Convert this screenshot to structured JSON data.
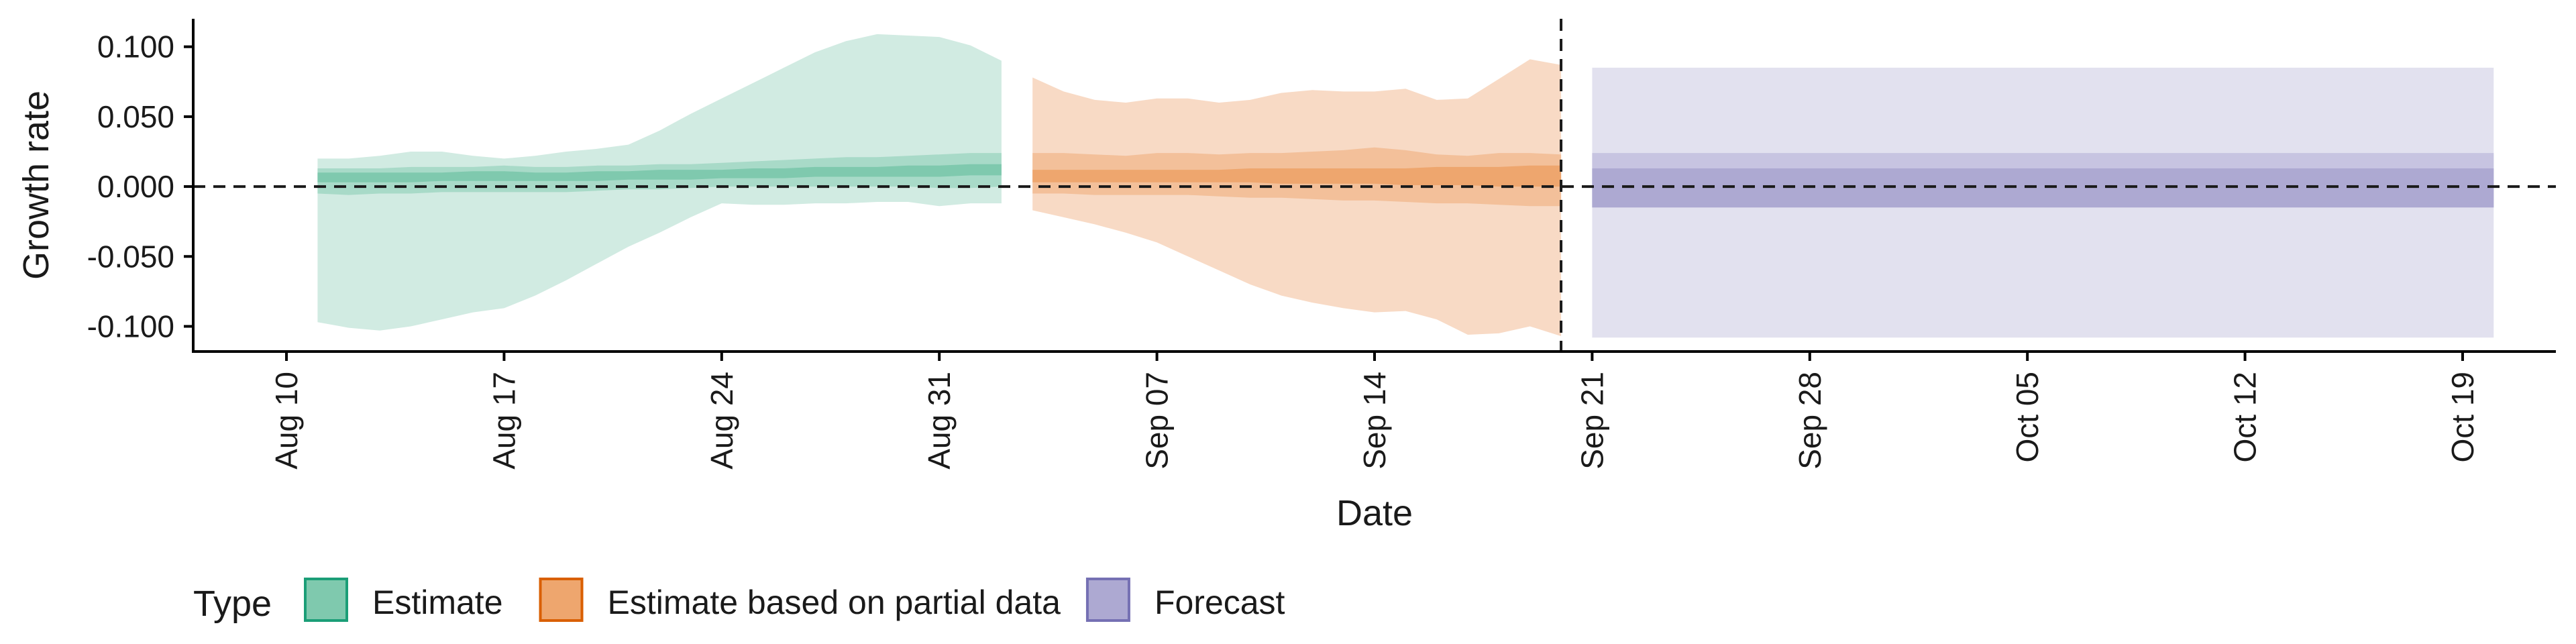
{
  "chart_data": {
    "type": "area",
    "xlabel": "Date",
    "ylabel": "Growth rate",
    "x_ticks": [
      "Aug 10",
      "Aug 17",
      "Aug 24",
      "Aug 31",
      "Sep 07",
      "Sep 14",
      "Sep 21",
      "Sep 28",
      "Oct 05",
      "Oct 12",
      "Oct 19"
    ],
    "y_ticks": [
      "0.100",
      "0.050",
      "0.000",
      "-0.050",
      "-0.100"
    ],
    "ylim": [
      -0.118,
      0.12
    ],
    "xlim": [
      "2020-08-07",
      "2020-10-22"
    ],
    "reference_line_y": 0,
    "vertical_line_date": "2020-09-20",
    "grid": false,
    "legend": {
      "title": "Type",
      "position": "bottom-left",
      "entries": [
        {
          "label": "Estimate",
          "fill": "#7fc9ae",
          "stroke": "#1b9e77"
        },
        {
          "label": "Estimate based on partial data",
          "fill": "#eea66e",
          "stroke": "#d95f02"
        },
        {
          "label": "Forecast",
          "fill": "#ada9d2",
          "stroke": "#7570b3"
        }
      ]
    },
    "series": [
      {
        "name": "Estimate",
        "colors": {
          "outer": "#d1ebe2",
          "mid": "#a8dac8",
          "inner": "#7fc9ae"
        },
        "dates": [
          "2020-08-11",
          "2020-08-12",
          "2020-08-13",
          "2020-08-14",
          "2020-08-15",
          "2020-08-16",
          "2020-08-17",
          "2020-08-18",
          "2020-08-19",
          "2020-08-20",
          "2020-08-21",
          "2020-08-22",
          "2020-08-23",
          "2020-08-24",
          "2020-08-25",
          "2020-08-26",
          "2020-08-27",
          "2020-08-28",
          "2020-08-29",
          "2020-08-30",
          "2020-08-31",
          "2020-09-01",
          "2020-09-02"
        ],
        "outer_lower": [
          -0.097,
          -0.101,
          -0.103,
          -0.1,
          -0.095,
          -0.09,
          -0.087,
          -0.078,
          -0.067,
          -0.055,
          -0.043,
          -0.033,
          -0.022,
          -0.012,
          -0.013,
          -0.013,
          -0.012,
          -0.012,
          -0.011,
          -0.011,
          -0.014,
          -0.012,
          -0.012
        ],
        "outer_upper": [
          0.02,
          0.02,
          0.022,
          0.025,
          0.025,
          0.022,
          0.02,
          0.022,
          0.025,
          0.027,
          0.03,
          0.04,
          0.052,
          0.063,
          0.074,
          0.085,
          0.096,
          0.104,
          0.109,
          0.108,
          0.107,
          0.101,
          0.09
        ],
        "mid_lower": [
          -0.005,
          -0.006,
          -0.005,
          -0.005,
          -0.004,
          -0.004,
          -0.004,
          -0.004,
          -0.004,
          -0.003,
          -0.002,
          -0.002,
          -0.001,
          0.0,
          0.0,
          0.0,
          0.0,
          0.0,
          0.0,
          0.0,
          -0.001,
          -0.001,
          0.0
        ],
        "mid_upper": [
          0.013,
          0.013,
          0.013,
          0.014,
          0.014,
          0.014,
          0.015,
          0.014,
          0.014,
          0.015,
          0.015,
          0.016,
          0.016,
          0.017,
          0.018,
          0.019,
          0.02,
          0.021,
          0.021,
          0.022,
          0.023,
          0.024,
          0.024
        ],
        "inner_lower": [
          0.003,
          0.003,
          0.003,
          0.003,
          0.004,
          0.004,
          0.004,
          0.004,
          0.004,
          0.004,
          0.005,
          0.005,
          0.005,
          0.006,
          0.006,
          0.006,
          0.007,
          0.007,
          0.007,
          0.007,
          0.007,
          0.008,
          0.008
        ],
        "inner_upper": [
          0.01,
          0.01,
          0.01,
          0.01,
          0.01,
          0.011,
          0.011,
          0.01,
          0.01,
          0.011,
          0.011,
          0.012,
          0.012,
          0.012,
          0.013,
          0.013,
          0.014,
          0.014,
          0.014,
          0.015,
          0.015,
          0.016,
          0.016
        ]
      },
      {
        "name": "Estimate based on partial data",
        "colors": {
          "outer": "#f8dac5",
          "mid": "#f3c09a",
          "inner": "#eea66e"
        },
        "dates": [
          "2020-09-03",
          "2020-09-04",
          "2020-09-05",
          "2020-09-06",
          "2020-09-07",
          "2020-09-08",
          "2020-09-09",
          "2020-09-10",
          "2020-09-11",
          "2020-09-12",
          "2020-09-13",
          "2020-09-14",
          "2020-09-15",
          "2020-09-16",
          "2020-09-17",
          "2020-09-18",
          "2020-09-19",
          "2020-09-20"
        ],
        "outer_lower": [
          -0.017,
          -0.022,
          -0.027,
          -0.033,
          -0.04,
          -0.05,
          -0.06,
          -0.07,
          -0.078,
          -0.083,
          -0.087,
          -0.09,
          -0.089,
          -0.095,
          -0.106,
          -0.105,
          -0.1,
          -0.107
        ],
        "outer_upper": [
          0.078,
          0.068,
          0.062,
          0.06,
          0.063,
          0.063,
          0.06,
          0.062,
          0.067,
          0.069,
          0.068,
          0.068,
          0.07,
          0.062,
          0.063,
          0.077,
          0.091,
          0.087
        ],
        "mid_lower": [
          -0.005,
          -0.005,
          -0.006,
          -0.006,
          -0.006,
          -0.006,
          -0.007,
          -0.008,
          -0.008,
          -0.009,
          -0.01,
          -0.01,
          -0.011,
          -0.012,
          -0.012,
          -0.013,
          -0.014,
          -0.014
        ],
        "mid_upper": [
          0.024,
          0.024,
          0.023,
          0.022,
          0.024,
          0.024,
          0.023,
          0.024,
          0.024,
          0.025,
          0.026,
          0.028,
          0.026,
          0.023,
          0.022,
          0.024,
          0.024,
          0.023
        ],
        "inner_lower": [
          0.003,
          0.003,
          0.003,
          0.003,
          0.003,
          0.003,
          0.003,
          0.003,
          0.002,
          0.002,
          0.002,
          0.002,
          0.001,
          0.001,
          0.001,
          0.0,
          0.0,
          0.0
        ],
        "inner_upper": [
          0.012,
          0.012,
          0.012,
          0.012,
          0.012,
          0.012,
          0.012,
          0.013,
          0.013,
          0.013,
          0.013,
          0.013,
          0.013,
          0.014,
          0.014,
          0.014,
          0.015,
          0.015
        ]
      },
      {
        "name": "Forecast",
        "colors": {
          "outer": "#e2e1ef",
          "mid": "#c7c4e1",
          "inner": "#ada9d2"
        },
        "dates": [
          "2020-09-21",
          "2020-10-20"
        ],
        "outer_lower": [
          -0.108,
          -0.108
        ],
        "outer_upper": [
          0.085,
          0.085
        ],
        "mid_lower": [
          -0.015,
          -0.015
        ],
        "mid_upper": [
          0.024,
          0.024
        ],
        "inner_lower": [
          -0.015,
          -0.015
        ],
        "inner_upper": [
          0.013,
          0.013
        ]
      }
    ]
  }
}
